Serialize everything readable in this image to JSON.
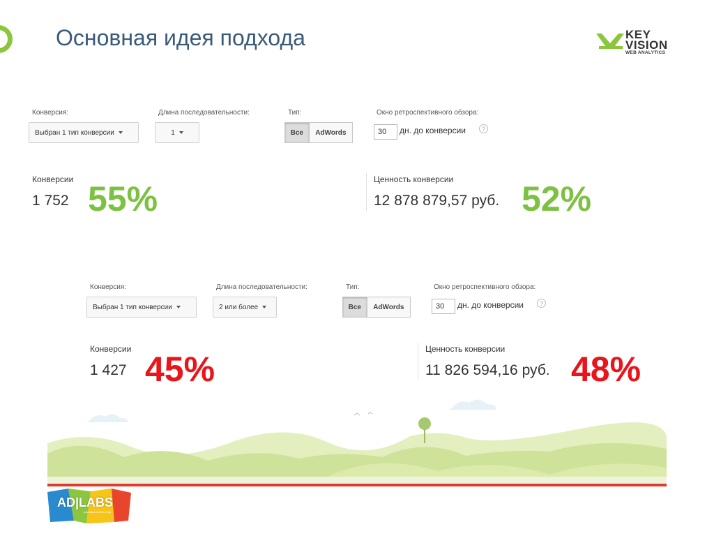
{
  "slide": {
    "title": "Основная идея подхода"
  },
  "logo": {
    "key": "KEY",
    "vision": "VISION",
    "sub": "WEB ANALYTICS"
  },
  "panel1": {
    "conversion_label": "Конверсия:",
    "conversion_value": "Выбран 1 тип конверсии",
    "length_label": "Длина последовательности:",
    "length_value": "1",
    "type_label": "Тип:",
    "type_all": "Все",
    "type_adwords": "AdWords",
    "lookback_label": "Окно ретроспективного обзора:",
    "lookback_value": "30",
    "lookback_suffix": "дн. до конверсии",
    "help": "?",
    "conv_metric_label": "Конверсии",
    "conv_metric_value": "1 752",
    "conv_pct": "55%",
    "value_metric_label": "Ценность конверсии",
    "value_metric_value": "12 878 879,57 руб.",
    "value_pct": "52%"
  },
  "panel2": {
    "conversion_label": "Конверсия:",
    "conversion_value": "Выбран 1 тип конверсии",
    "length_label": "Длина последовательности:",
    "length_value": "2 или более",
    "type_label": "Тип:",
    "type_all": "Все",
    "type_adwords": "AdWords",
    "lookback_label": "Окно ретроспективного обзора:",
    "lookback_value": "30",
    "lookback_suffix": "дн. до конверсии",
    "help": "?",
    "conv_metric_label": "Конверсии",
    "conv_metric_value": "1 427",
    "conv_pct": "45%",
    "value_metric_label": "Ценность конверсии",
    "value_metric_value": "11 826 594,16 руб.",
    "value_pct": "48%"
  },
  "footer_logo": {
    "text": "AD|LABS",
    "sub": "рекламное агентство"
  },
  "colors": {
    "title": "#3a5a7a",
    "pct_green": "#7dc142",
    "pct_red": "#e8151b",
    "hills_light": "#d8eaa8",
    "hills_mid": "#c4dc8c",
    "red_line": "#e03b2c"
  }
}
